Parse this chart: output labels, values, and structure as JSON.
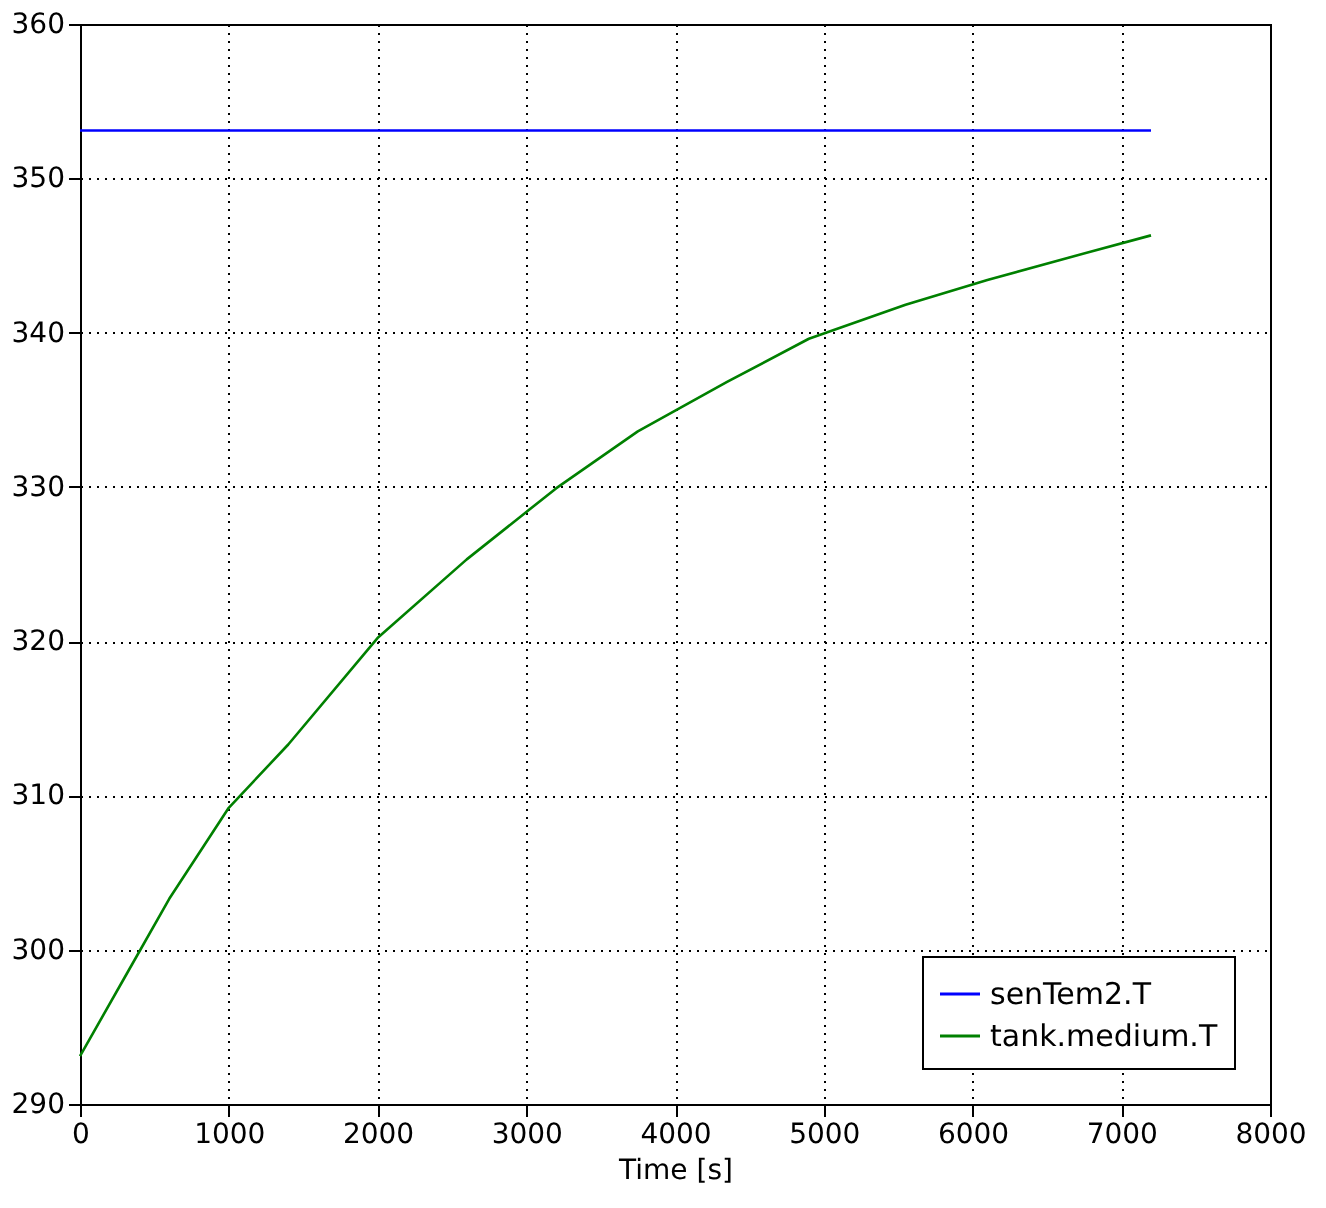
{
  "chart_data": {
    "type": "line",
    "xlabel": "Time [s]",
    "xlim": [
      0,
      8000
    ],
    "xticks": [
      0,
      1000,
      2000,
      3000,
      4000,
      5000,
      6000,
      7000,
      8000
    ],
    "ylim": [
      290,
      360
    ],
    "yticks": [
      290,
      300,
      310,
      320,
      330,
      340,
      350,
      360
    ],
    "grid": true,
    "legend": "bottom right",
    "line_style": "solid",
    "marker": "none",
    "series": [
      {
        "name": "senTem2.T",
        "color": "#0000ff",
        "x": [
          0,
          7200
        ],
        "values": [
          353.1,
          353.1
        ]
      },
      {
        "name": "tank.medium.T",
        "color": "#008000",
        "x": [
          0,
          300,
          600,
          1000,
          1400,
          2000,
          2600,
          3200,
          3750,
          4350,
          4900,
          5550,
          6100,
          6700,
          7200
        ],
        "values": [
          293.1,
          298.2,
          303.3,
          309.2,
          313.3,
          320.2,
          325.3,
          329.9,
          333.6,
          336.8,
          339.6,
          341.8,
          343.4,
          345.0,
          346.3
        ]
      }
    ]
  }
}
